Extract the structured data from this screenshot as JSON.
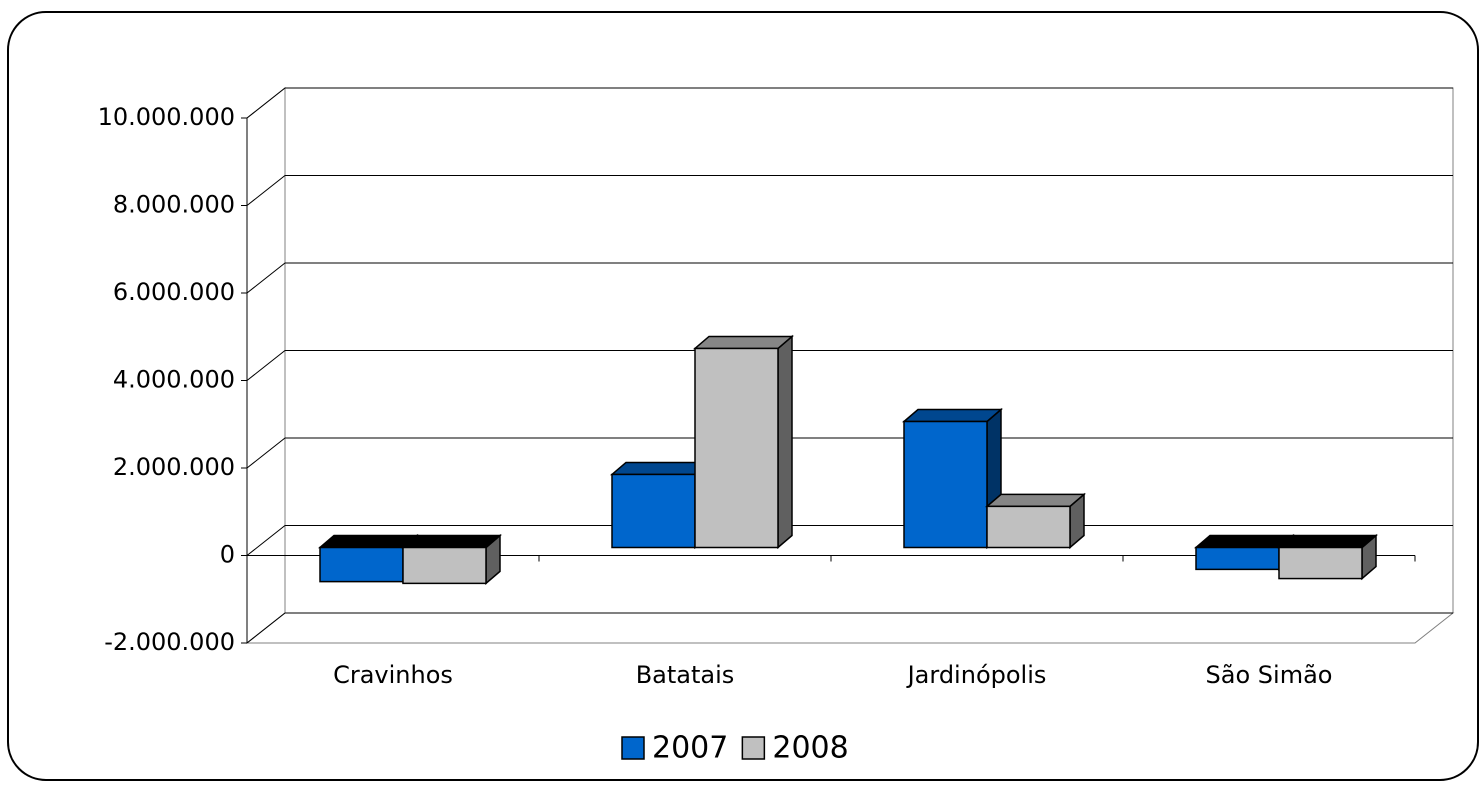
{
  "chart_data": {
    "type": "bar",
    "categories": [
      "Cravinhos",
      "Batatais",
      "Jardinópolis",
      "São Simão"
    ],
    "series": [
      {
        "name": "2007",
        "color": "#0066cc",
        "values": [
          -780000,
          1670000,
          2880000,
          -500000
        ]
      },
      {
        "name": "2008",
        "color": "#c0c0c0",
        "values": [
          -820000,
          4550000,
          940000,
          -710000
        ]
      }
    ],
    "ylim": [
      -2000000,
      10000000
    ],
    "yticks": [
      {
        "value": -2000000,
        "label": "-2.000.000"
      },
      0,
      {
        "value": 2000000,
        "label": "2.000.000"
      },
      {
        "value": 4000000,
        "label": "4.000.000"
      },
      {
        "value": 6000000,
        "label": "6.000.000"
      },
      {
        "value": 8000000,
        "label": "8.000.000"
      },
      {
        "value": 10000000,
        "label": "10.000.000"
      }
    ],
    "grid": true,
    "legend": "bottom"
  }
}
